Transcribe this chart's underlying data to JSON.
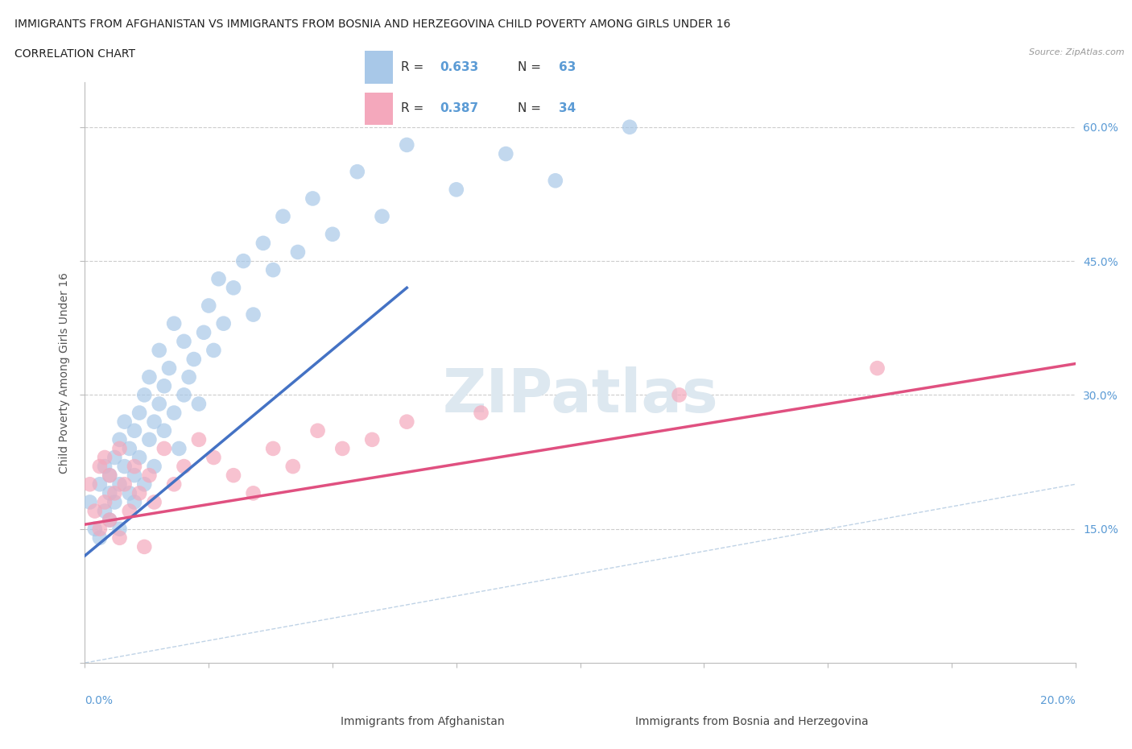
{
  "title_line1": "IMMIGRANTS FROM AFGHANISTAN VS IMMIGRANTS FROM BOSNIA AND HERZEGOVINA CHILD POVERTY AMONG GIRLS UNDER 16",
  "title_line2": "CORRELATION CHART",
  "source": "Source: ZipAtlas.com",
  "ylabel": "Child Poverty Among Girls Under 16",
  "xlim": [
    0.0,
    0.2
  ],
  "ylim": [
    0.0,
    0.65
  ],
  "R_afghanistan": 0.633,
  "N_afghanistan": 63,
  "R_bosnia": 0.387,
  "N_bosnia": 34,
  "color_afghanistan": "#a8c8e8",
  "color_bosnia": "#f4a8bc",
  "color_trendline_afghanistan": "#4472c4",
  "color_trendline_bosnia": "#e05080",
  "color_diagonal": "#b0c8e0",
  "watermark": "ZIPatlas",
  "afghanistan_x": [
    0.001,
    0.002,
    0.003,
    0.003,
    0.004,
    0.004,
    0.005,
    0.005,
    0.005,
    0.006,
    0.006,
    0.007,
    0.007,
    0.007,
    0.008,
    0.008,
    0.009,
    0.009,
    0.01,
    0.01,
    0.01,
    0.011,
    0.011,
    0.012,
    0.012,
    0.013,
    0.013,
    0.014,
    0.014,
    0.015,
    0.015,
    0.016,
    0.016,
    0.017,
    0.018,
    0.018,
    0.019,
    0.02,
    0.02,
    0.021,
    0.022,
    0.023,
    0.024,
    0.025,
    0.026,
    0.027,
    0.028,
    0.03,
    0.032,
    0.034,
    0.036,
    0.038,
    0.04,
    0.043,
    0.046,
    0.05,
    0.055,
    0.06,
    0.065,
    0.075,
    0.085,
    0.095,
    0.11
  ],
  "afghanistan_y": [
    0.18,
    0.15,
    0.2,
    0.14,
    0.17,
    0.22,
    0.19,
    0.16,
    0.21,
    0.23,
    0.18,
    0.25,
    0.2,
    0.15,
    0.22,
    0.27,
    0.19,
    0.24,
    0.21,
    0.26,
    0.18,
    0.28,
    0.23,
    0.2,
    0.3,
    0.25,
    0.32,
    0.27,
    0.22,
    0.29,
    0.35,
    0.31,
    0.26,
    0.33,
    0.28,
    0.38,
    0.24,
    0.3,
    0.36,
    0.32,
    0.34,
    0.29,
    0.37,
    0.4,
    0.35,
    0.43,
    0.38,
    0.42,
    0.45,
    0.39,
    0.47,
    0.44,
    0.5,
    0.46,
    0.52,
    0.48,
    0.55,
    0.5,
    0.58,
    0.53,
    0.57,
    0.54,
    0.6
  ],
  "bosnia_x": [
    0.001,
    0.002,
    0.003,
    0.003,
    0.004,
    0.004,
    0.005,
    0.005,
    0.006,
    0.007,
    0.007,
    0.008,
    0.009,
    0.01,
    0.011,
    0.012,
    0.013,
    0.014,
    0.016,
    0.018,
    0.02,
    0.023,
    0.026,
    0.03,
    0.034,
    0.038,
    0.042,
    0.047,
    0.052,
    0.058,
    0.065,
    0.08,
    0.12,
    0.16
  ],
  "bosnia_y": [
    0.2,
    0.17,
    0.22,
    0.15,
    0.18,
    0.23,
    0.16,
    0.21,
    0.19,
    0.14,
    0.24,
    0.2,
    0.17,
    0.22,
    0.19,
    0.13,
    0.21,
    0.18,
    0.24,
    0.2,
    0.22,
    0.25,
    0.23,
    0.21,
    0.19,
    0.24,
    0.22,
    0.26,
    0.24,
    0.25,
    0.27,
    0.28,
    0.3,
    0.33
  ]
}
